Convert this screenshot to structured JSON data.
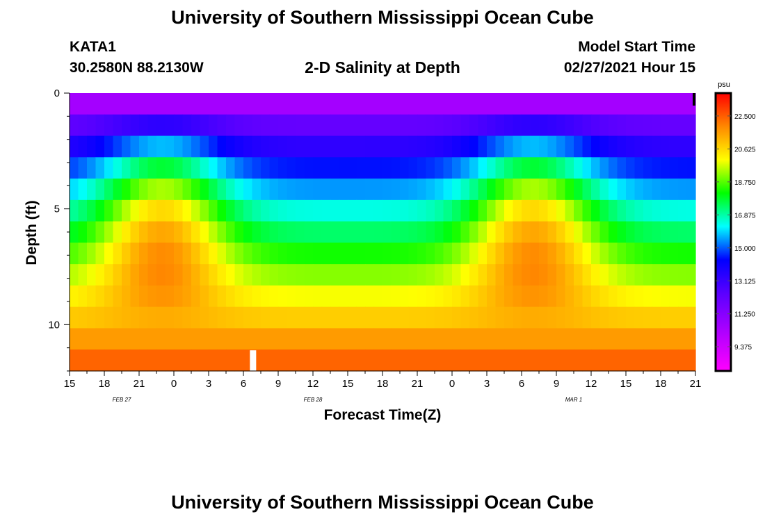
{
  "page": {
    "title_top": "University of Southern Mississippi Ocean Cube",
    "title_bottom": "University of Southern Mississippi Ocean Cube",
    "station_id": "KATA1",
    "station_coords": "30.2580N 88.2130W",
    "plot_title": "2-D Salinity at Depth",
    "model_label": "Model Start Time",
    "model_time": "02/27/2021 Hour 15"
  },
  "chart_data": {
    "type": "heatmap",
    "title": "2-D Salinity at Depth",
    "xlabel": "Forecast Time(Z)",
    "ylabel": "Depth (ft)",
    "x_ticks": [
      "15",
      "18",
      "21",
      "0",
      "3",
      "6",
      "9",
      "12",
      "15",
      "18",
      "21",
      "0",
      "3",
      "6",
      "9",
      "12",
      "15",
      "18",
      "21"
    ],
    "date_labels": [
      {
        "label": "FEB 27",
        "tick_index": 1.5
      },
      {
        "label": "FEB 28",
        "tick_index": 7
      },
      {
        "label": "MAR 1",
        "tick_index": 14.5
      }
    ],
    "y_ticks": [
      0,
      5,
      10
    ],
    "y_range": [
      0,
      12
    ],
    "colorbar": {
      "unit": "psu",
      "min": 8.0,
      "max": 23.8,
      "tick_values": [
        22.5,
        20.625,
        18.75,
        16.875,
        15.0,
        13.125,
        11.25,
        9.375
      ],
      "tick_labels": [
        "22.500",
        "20.625",
        "18.750",
        "16.875",
        "15.000",
        "13.125",
        "11.250",
        "9.375"
      ]
    },
    "grid": {
      "depth_levels_ft": [
        0,
        1,
        2,
        3,
        4,
        5,
        6,
        7,
        8,
        9,
        10,
        11,
        12
      ],
      "time_columns": 72,
      "hours_span": 54,
      "profile_shape": {
        "surface_base": 10.5,
        "bottom_base": 22.4,
        "front_hours": [
          8,
          40
        ],
        "front_amplitude": 4.2
      }
    },
    "markers": [
      {
        "name": "current-time",
        "hour": 15.8,
        "depth_ft": 11.5,
        "color": "#ffffff"
      },
      {
        "name": "end-marker",
        "hour": 54,
        "depth_ft": 0.3,
        "color": "#000000"
      }
    ]
  }
}
